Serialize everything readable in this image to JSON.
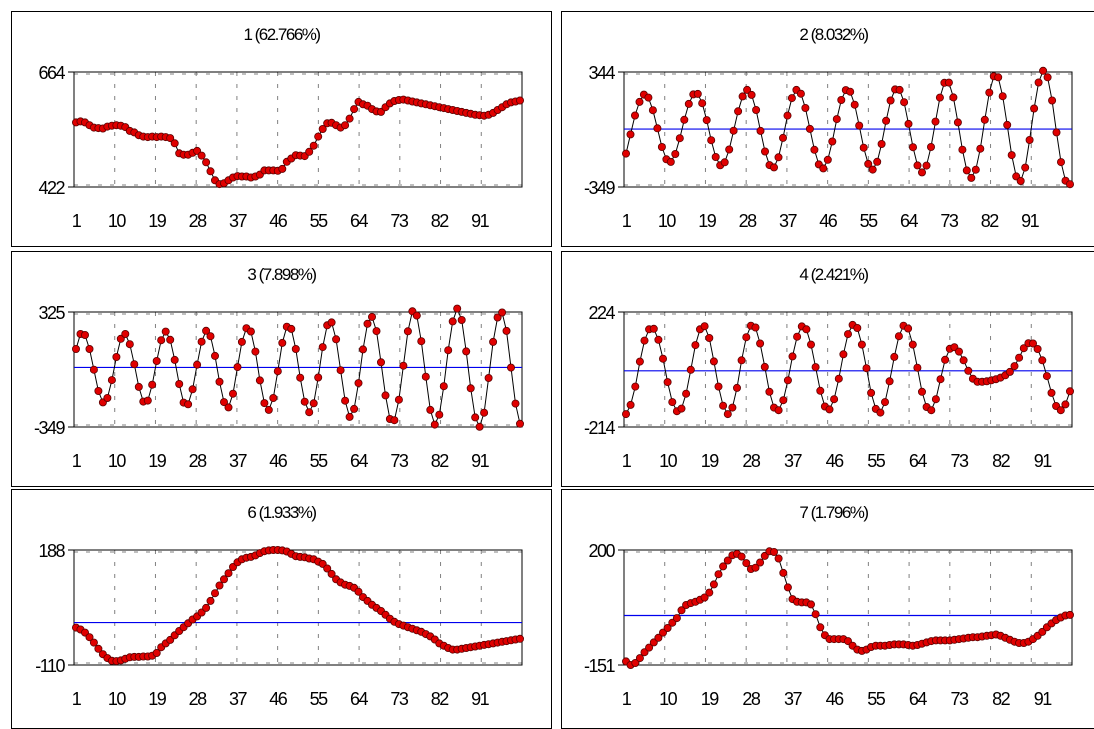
{
  "colors": {
    "series_line": "#000000",
    "marker_fill": "#e00000",
    "marker_stroke": "#5a0000",
    "mean_line": "#0000ee",
    "grid": "#808080"
  },
  "chart_data": [
    {
      "type": "line",
      "title": "1 (62.766%)",
      "xlabel": "",
      "ylabel": "",
      "x_ticks": [
        "1",
        "10",
        "19",
        "28",
        "37",
        "46",
        "55",
        "64",
        "73",
        "82",
        "91"
      ],
      "y_ticks": [
        "664",
        "422"
      ],
      "ylim": [
        422,
        664
      ],
      "mean_line": false,
      "grid": true,
      "series": [
        {
          "values": [
            558,
            560,
            558,
            552,
            547,
            546,
            545,
            549,
            551,
            552,
            551,
            548,
            540,
            537,
            531,
            528,
            527,
            528,
            527,
            528,
            527,
            525,
            514,
            493,
            490,
            490,
            494,
            498,
            488,
            474,
            455,
            436,
            428,
            430,
            436,
            442,
            445,
            444,
            444,
            442,
            444,
            448,
            457,
            457,
            457,
            456,
            460,
            475,
            482,
            489,
            488,
            487,
            496,
            509,
            528,
            544,
            556,
            557,
            552,
            547,
            552,
            566,
            586,
            601,
            596,
            593,
            586,
            581,
            580,
            590,
            598,
            603,
            605,
            606,
            604,
            602,
            600,
            598,
            596,
            594,
            592,
            590,
            588,
            586,
            584,
            582,
            580,
            578,
            576,
            574,
            573,
            572,
            574,
            578,
            584,
            590,
            596,
            600,
            602,
            604
          ]
        }
      ]
    },
    {
      "type": "line",
      "title": "2 (8.032%)",
      "xlabel": "",
      "ylabel": "",
      "x_ticks": [
        "1",
        "10",
        "19",
        "28",
        "37",
        "46",
        "55",
        "64",
        "73",
        "82",
        "91"
      ],
      "y_ticks": [
        "344",
        "-349"
      ],
      "ylim": [
        -349,
        344
      ],
      "mean_line": true,
      "grid": true,
      "series": [
        {
          "values": [
            -148,
            -32,
            82,
            164,
            208,
            190,
            114,
            5,
            -108,
            -182,
            -198,
            -150,
            -55,
            56,
            152,
            209,
            212,
            156,
            54,
            -67,
            -168,
            -218,
            -200,
            -123,
            -10,
            107,
            197,
            236,
            206,
            115,
            -11,
            -135,
            -217,
            -231,
            -170,
            -53,
            81,
            187,
            236,
            213,
            127,
            1,
            -125,
            -213,
            -237,
            -185,
            -75,
            60,
            175,
            235,
            225,
            147,
            21,
            -112,
            -210,
            -244,
            -197,
            -90,
            50,
            172,
            239,
            236,
            162,
            31,
            -109,
            -219,
            -261,
            -220,
            -108,
            45,
            190,
            279,
            280,
            191,
            40,
            -124,
            -249,
            -294,
            -245,
            -118,
            56,
            220,
            318,
            312,
            198,
            25,
            -157,
            -285,
            -313,
            -232,
            -66,
            124,
            281,
            351,
            312,
            172,
            -20,
            -199,
            -311,
            -332
          ]
        }
      ]
    },
    {
      "type": "line",
      "title": "3 (7.898%)",
      "xlabel": "",
      "ylabel": "",
      "x_ticks": [
        "1",
        "10",
        "19",
        "28",
        "37",
        "46",
        "55",
        "64",
        "73",
        "82",
        "91"
      ],
      "y_ticks": [
        "325",
        "-349"
      ],
      "ylim": [
        -349,
        325
      ],
      "mean_line": true,
      "grid": true,
      "series": [
        {
          "values": [
            108,
            196,
            190,
            108,
            -13,
            -138,
            -205,
            -179,
            -74,
            61,
            168,
            196,
            136,
            19,
            -114,
            -200,
            -194,
            -101,
            38,
            160,
            210,
            162,
            44,
            -97,
            -206,
            -216,
            -128,
            16,
            151,
            215,
            183,
            68,
            -84,
            -203,
            -234,
            -154,
            2,
            150,
            230,
            211,
            93,
            -76,
            -209,
            -249,
            -179,
            -22,
            144,
            239,
            226,
            108,
            -60,
            -201,
            -262,
            -210,
            -59,
            119,
            247,
            264,
            165,
            -16,
            -195,
            -290,
            -243,
            -92,
            106,
            256,
            296,
            213,
            30,
            -164,
            -302,
            -309,
            -189,
            10,
            212,
            329,
            304,
            154,
            -54,
            -249,
            -335,
            -277,
            -110,
            101,
            270,
            345,
            278,
            94,
            -122,
            -293,
            -348,
            -265,
            -62,
            150,
            293,
            322,
            214,
            -1,
            -212,
            -330
          ]
        }
      ]
    },
    {
      "type": "line",
      "title": "4 (2.421%)",
      "xlabel": "",
      "ylabel": "",
      "x_ticks": [
        "1",
        "10",
        "19",
        "28",
        "37",
        "46",
        "55",
        "64",
        "73",
        "82",
        "91"
      ],
      "y_ticks": [
        "224",
        "-214"
      ],
      "ylim": [
        -214,
        224
      ],
      "mean_line": true,
      "grid": true,
      "series": [
        {
          "values": [
            -165,
            -130,
            -60,
            35,
            115,
            158,
            160,
            118,
            46,
            -43,
            -119,
            -154,
            -144,
            -87,
            4,
            98,
            158,
            170,
            125,
            36,
            -60,
            -133,
            -165,
            -140,
            -65,
            40,
            128,
            172,
            165,
            104,
            15,
            -80,
            -140,
            -150,
            -112,
            -36,
            55,
            130,
            169,
            158,
            100,
            14,
            -76,
            -136,
            -147,
            -108,
            -30,
            63,
            140,
            175,
            163,
            100,
            10,
            -84,
            -145,
            -159,
            -119,
            -40,
            53,
            132,
            172,
            161,
            100,
            12,
            -80,
            -138,
            -150,
            -108,
            -32,
            42,
            84,
            90,
            73,
            40,
            0,
            -30,
            -42,
            -42,
            -40,
            -36,
            -32,
            -26,
            -17,
            -4,
            18,
            50,
            86,
            105,
            104,
            83,
            40,
            -20,
            -84,
            -134,
            -150,
            -128,
            -78
          ]
        }
      ]
    },
    {
      "type": "line",
      "title": "6 (1.933%)",
      "xlabel": "",
      "ylabel": "",
      "x_ticks": [
        "1",
        "10",
        "19",
        "28",
        "37",
        "46",
        "55",
        "64",
        "73",
        "82",
        "91"
      ],
      "y_ticks": [
        "188",
        "-110"
      ],
      "ylim": [
        -110,
        188
      ],
      "mean_line": true,
      "grid": true,
      "series": [
        {
          "values": [
            -13,
            -18,
            -26,
            -38,
            -52,
            -68,
            -82,
            -92,
            -99,
            -100,
            -98,
            -94,
            -90,
            -89,
            -89,
            -88,
            -88,
            -86,
            -79,
            -64,
            -54,
            -45,
            -33,
            -22,
            -12,
            -2,
            8,
            16,
            26,
            38,
            56,
            76,
            96,
            112,
            128,
            144,
            156,
            164,
            168,
            170,
            174,
            180,
            185,
            187,
            188,
            188,
            187,
            184,
            178,
            172,
            170,
            169,
            166,
            164,
            158,
            152,
            140,
            126,
            112,
            104,
            98,
            95,
            90,
            80,
            66,
            56,
            46,
            38,
            30,
            20,
            10,
            2,
            -4,
            -8,
            -12,
            -16,
            -20,
            -24,
            -30,
            -36,
            -44,
            -54,
            -60,
            -66,
            -70,
            -70,
            -68,
            -66,
            -64,
            -62,
            -60,
            -58,
            -56,
            -54,
            -52,
            -50,
            -48,
            -46,
            -44,
            -42
          ]
        }
      ]
    },
    {
      "type": "line",
      "title": "7 (1.796%)",
      "xlabel": "",
      "ylabel": "",
      "x_ticks": [
        "1",
        "10",
        "19",
        "28",
        "37",
        "46",
        "55",
        "64",
        "73",
        "82",
        "91"
      ],
      "y_ticks": [
        "200",
        "-151"
      ],
      "ylim": [
        -151,
        200
      ],
      "mean_line": true,
      "grid": true,
      "series": [
        {
          "values": [
            -140,
            -151,
            -145,
            -130,
            -112,
            -98,
            -82,
            -68,
            -52,
            -38,
            -22,
            -8,
            16,
            32,
            38,
            42,
            48,
            55,
            70,
            95,
            126,
            150,
            168,
            184,
            188,
            180,
            160,
            142,
            146,
            162,
            182,
            196,
            194,
            174,
            130,
            86,
            50,
            42,
            40,
            40,
            34,
            4,
            -36,
            -60,
            -72,
            -72,
            -72,
            -72,
            -78,
            -92,
            -104,
            -108,
            -104,
            -96,
            -92,
            -92,
            -92,
            -90,
            -88,
            -88,
            -88,
            -90,
            -92,
            -90,
            -86,
            -82,
            -78,
            -76,
            -76,
            -76,
            -76,
            -74,
            -72,
            -70,
            -68,
            -66,
            -66,
            -64,
            -62,
            -60,
            -58,
            -62,
            -68,
            -74,
            -80,
            -84,
            -84,
            -80,
            -72,
            -62,
            -50,
            -36,
            -24,
            -14,
            -6,
            0,
            2
          ]
        }
      ]
    }
  ]
}
